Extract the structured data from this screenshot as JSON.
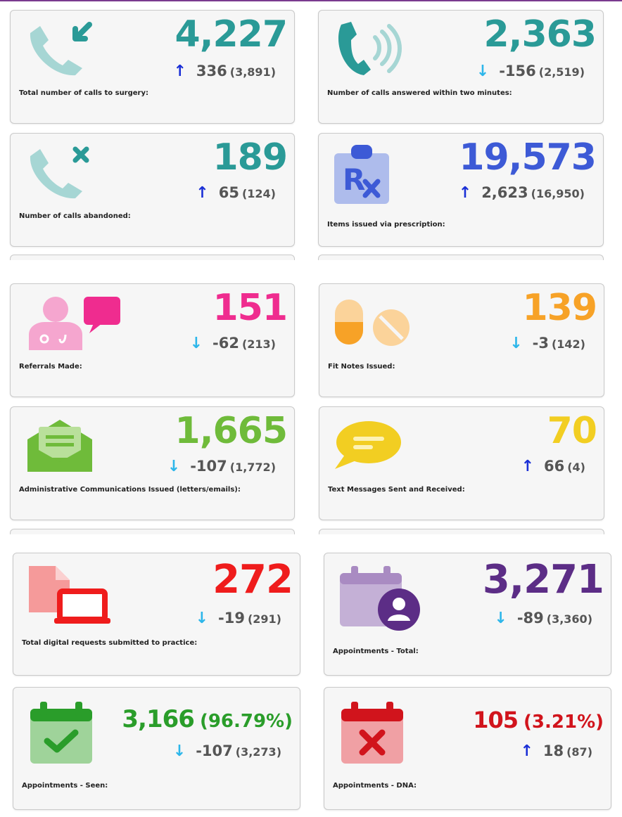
{
  "colors": {
    "teal": "#2a9a97",
    "blue": "#3d5ad6",
    "pink": "#ef2c8f",
    "orange": "#f7a227",
    "green_light": "#6fbb3a",
    "yellow": "#f2ce22",
    "red": "#ef1c1c",
    "purple": "#5c2d86",
    "green": "#2a9d2a",
    "dark_red": "#d1141c",
    "arrow_up": "#1a2fd6",
    "arrow_down": "#2cb6ea"
  },
  "cards": [
    {
      "id": "calls-to-surgery",
      "icon": "phone-incoming-icon",
      "value": "4,227",
      "pct": "",
      "change": "336",
      "prev": "(3,891)",
      "direction": "up",
      "label": "Total number of calls to surgery:",
      "color": "#2a9a97"
    },
    {
      "id": "calls-answered",
      "icon": "phone-ringing-icon",
      "value": "2,363",
      "pct": "",
      "change": "-156",
      "prev": "(2,519)",
      "direction": "down",
      "label": "Number of calls answered within two minutes:",
      "color": "#2a9a97"
    },
    {
      "id": "calls-abandoned",
      "icon": "phone-missed-icon",
      "value": "189",
      "pct": "",
      "change": "65",
      "prev": "(124)",
      "direction": "up",
      "label": "Number of calls abandoned:",
      "color": "#2a9a97"
    },
    {
      "id": "prescription-items",
      "icon": "prescription-clipboard-icon",
      "value": "19,573",
      "pct": "",
      "change": "2,623",
      "prev": "(16,950)",
      "direction": "up",
      "label": "Items issued via prescription:",
      "color": "#3d5ad6"
    },
    {
      "id": "referrals",
      "icon": "doctor-referral-icon",
      "value": "151",
      "pct": "",
      "change": "-62",
      "prev": "(213)",
      "direction": "down",
      "label": "Referrals Made:",
      "color": "#ef2c8f"
    },
    {
      "id": "fit-notes",
      "icon": "pills-icon",
      "value": "139",
      "pct": "",
      "change": "-3",
      "prev": "(142)",
      "direction": "down",
      "label": "Fit Notes Issued:",
      "color": "#f7a227"
    },
    {
      "id": "admin-comms",
      "icon": "open-envelope-icon",
      "value": "1,665",
      "pct": "",
      "change": "-107",
      "prev": "(1,772)",
      "direction": "down",
      "label": "Administrative Communications Issued (letters/emails):",
      "color": "#6fbb3a"
    },
    {
      "id": "text-messages",
      "icon": "speech-bubble-icon",
      "value": "70",
      "pct": "",
      "change": "66",
      "prev": "(4)",
      "direction": "up",
      "label": "Text Messages Sent and Received:",
      "color": "#f2ce22"
    },
    {
      "id": "digital-requests",
      "icon": "digital-request-laptop-icon",
      "value": "272",
      "pct": "",
      "change": "-19",
      "prev": "(291)",
      "direction": "down",
      "label": "Total digital requests submitted to practice:",
      "color": "#ef1c1c"
    },
    {
      "id": "appointments-total",
      "icon": "calendar-person-icon",
      "value": "3,271",
      "pct": "",
      "change": "-89",
      "prev": "(3,360)",
      "direction": "down",
      "label": "Appointments - Total:",
      "color": "#5c2d86"
    },
    {
      "id": "appointments-seen",
      "icon": "calendar-check-icon",
      "value": "3,166",
      "pct": "(96.79%)",
      "change": "-107",
      "prev": "(3,273)",
      "direction": "down",
      "label": "Appointments - Seen:",
      "color": "#2a9d2a"
    },
    {
      "id": "appointments-dna",
      "icon": "calendar-cross-icon",
      "value": "105",
      "pct": "(3.21%)",
      "change": "18",
      "prev": "(87)",
      "direction": "up",
      "label": "Appointments - DNA:",
      "color": "#d1141c"
    }
  ],
  "arrows": {
    "up": "↑",
    "down": "↓"
  }
}
